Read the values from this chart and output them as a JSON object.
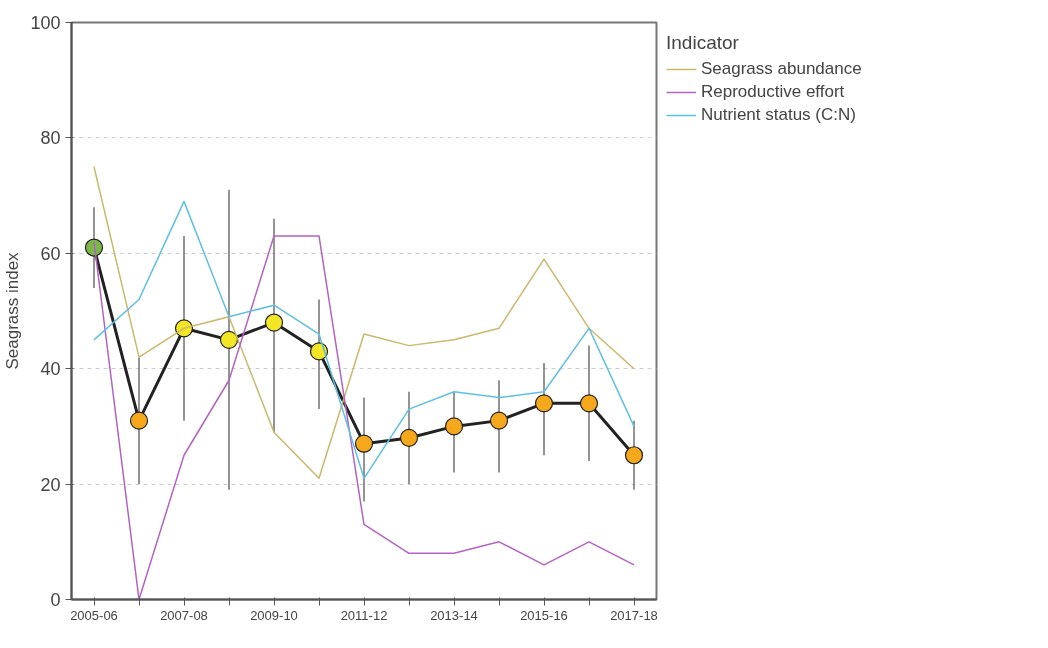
{
  "chart_data": {
    "type": "line",
    "ylabel": "Seagrass index",
    "legend_title": "Indicator",
    "categories": [
      "2005-06",
      null,
      "2007-08",
      null,
      "2009-10",
      null,
      "2011-12",
      null,
      "2013-14",
      null,
      "2015-16",
      null,
      "2017-18"
    ],
    "ylim": [
      0,
      100
    ],
    "yticks": [
      0,
      20,
      40,
      60,
      80,
      100
    ],
    "grid": "y",
    "legend": "right",
    "line_style": "solid",
    "series": [
      {
        "name": "Seagrass abundance",
        "color": "#cdb76a",
        "marker": "none",
        "values": [
          75,
          42,
          47,
          49,
          29,
          21,
          46,
          44,
          45,
          47,
          59,
          47,
          40
        ]
      },
      {
        "name": "Reproductive effort",
        "color": "#b462c4",
        "marker": "none",
        "values": [
          62,
          0,
          25,
          38,
          63,
          63,
          13,
          8,
          8,
          10,
          6,
          10,
          6
        ]
      },
      {
        "name": "Nutrient status (C:N)",
        "color": "#5cc0e6",
        "marker": "none",
        "values": [
          45,
          52,
          69,
          49,
          51,
          46,
          21,
          33,
          36,
          35,
          36,
          47,
          30
        ]
      },
      {
        "color": "#222222",
        "marker": "circle",
        "colors": [
          "#7ab648",
          "#f5a81c",
          "#f2e627",
          "#f2e627",
          "#f2e627",
          "#f2e627",
          "#f5a81c",
          "#f5a81c",
          "#f5a81c",
          "#f5a81c",
          "#f5a81c",
          "#f5a81c",
          "#f5a81c"
        ],
        "values": [
          61,
          31,
          47,
          45,
          48,
          43,
          27,
          28,
          30,
          31,
          34,
          34,
          25
        ],
        "errors": [
          [
            54,
            68
          ],
          [
            20,
            42
          ],
          [
            31,
            63
          ],
          [
            19,
            71
          ],
          [
            29,
            66
          ],
          [
            33,
            52
          ],
          [
            17,
            35
          ],
          [
            20,
            36
          ],
          [
            22,
            36
          ],
          [
            22,
            38
          ],
          [
            25,
            41
          ],
          [
            24,
            44
          ],
          [
            19,
            31
          ]
        ]
      }
    ]
  }
}
